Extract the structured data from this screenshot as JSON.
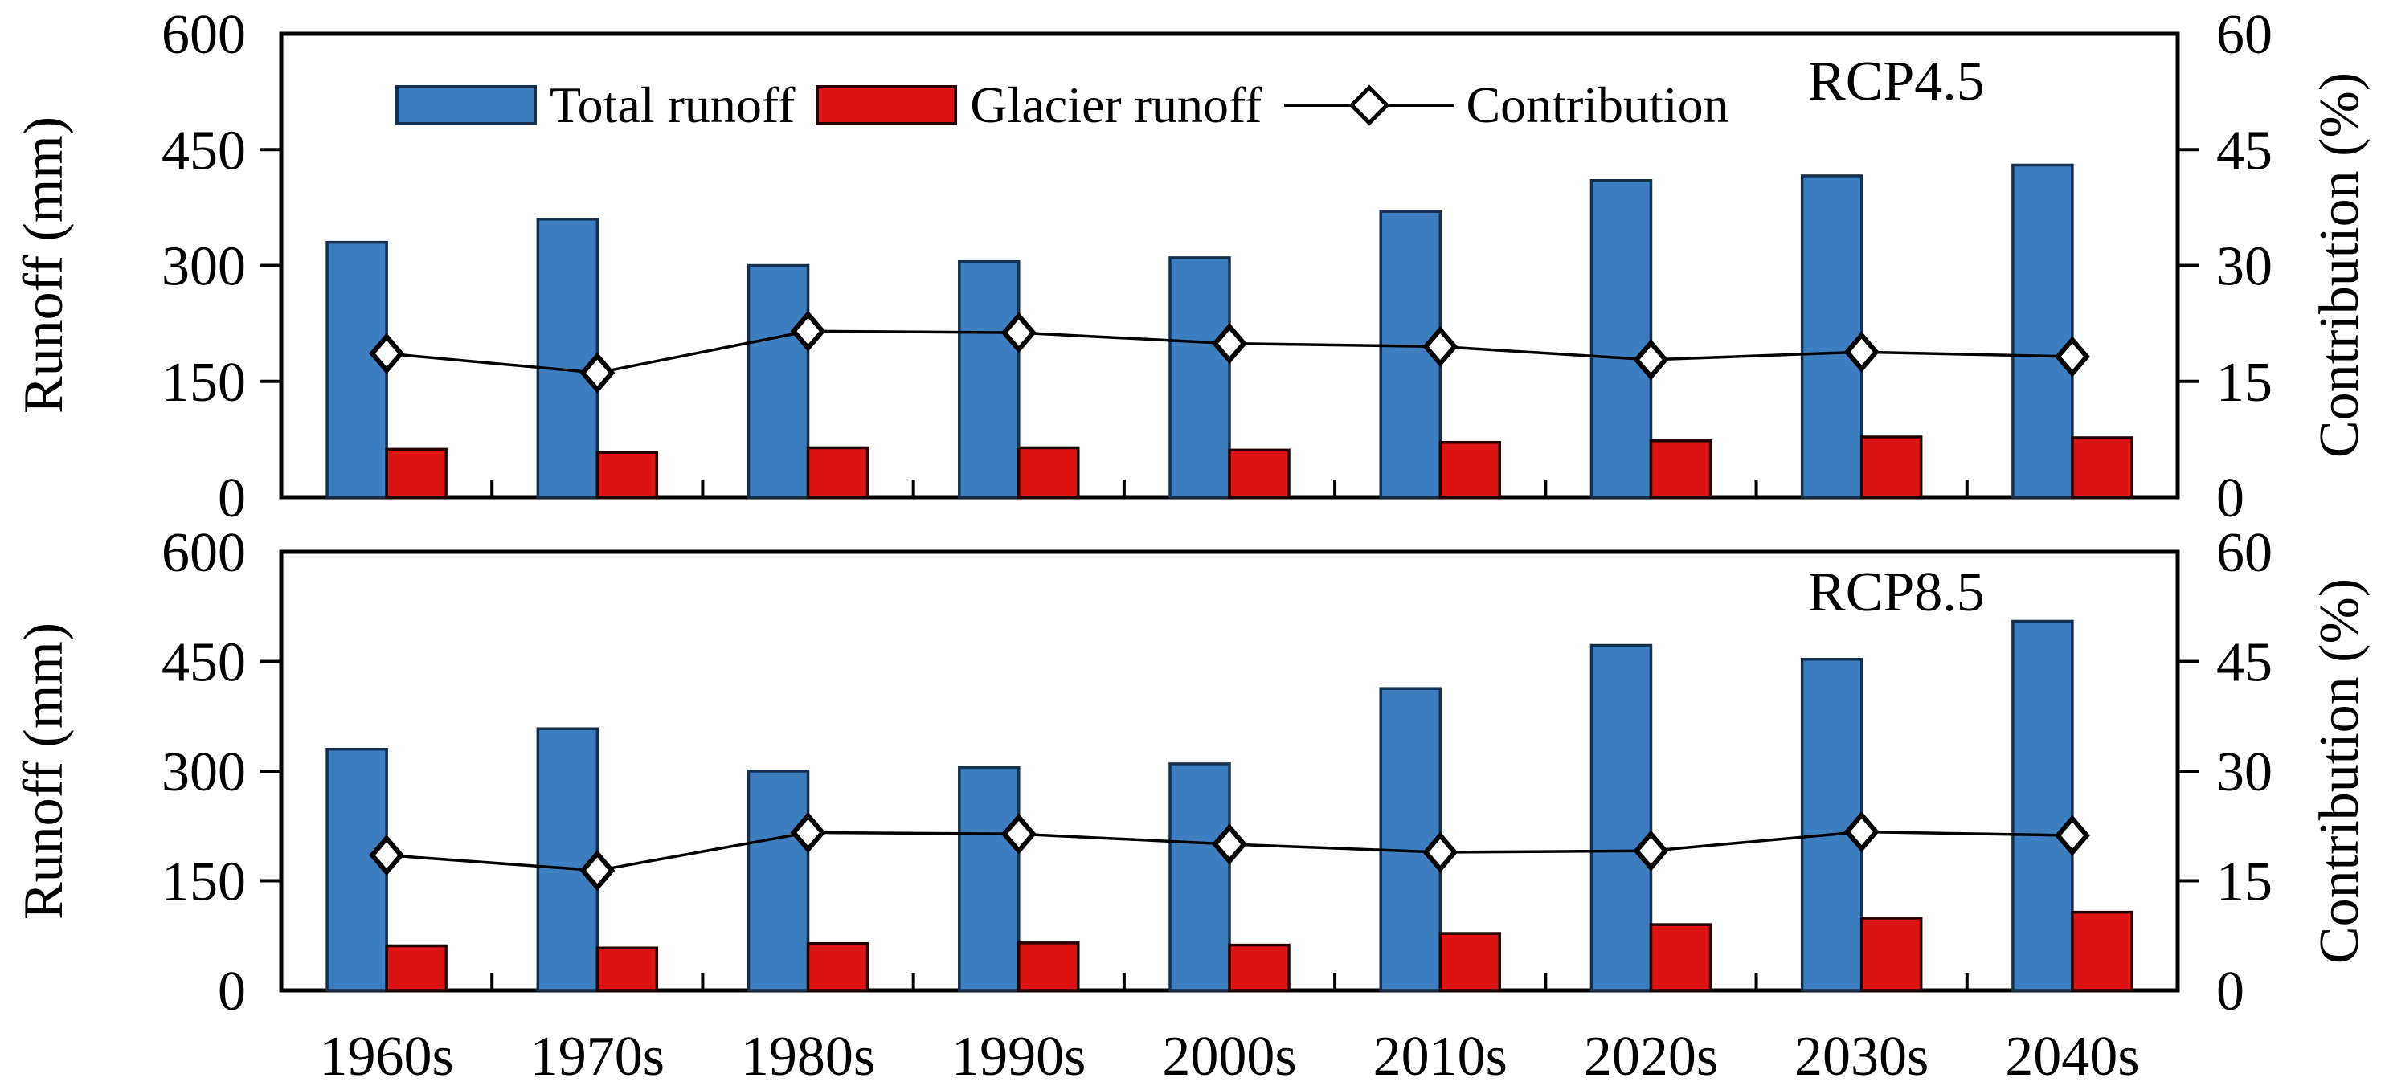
{
  "figure": {
    "y_axis_label": "Runoff (mm)",
    "y2_axis_label": "Contribution (%)"
  },
  "legend": {
    "total": "Total runoff",
    "glacier": "Glacier runoff",
    "contribution": "Contribution"
  },
  "colors": {
    "total_fill": "#3C7EC0",
    "total_border": "#16304F",
    "glacier_fill": "#DC1414",
    "glacier_border": "#240000",
    "line": "#000000",
    "marker_fill": "#FFFFFF",
    "frame": "#000000"
  },
  "chart_data": [
    {
      "type": "bar+line",
      "title": "RCP4.5",
      "categories": [
        "1960s",
        "1970s",
        "1980s",
        "1990s",
        "2000s",
        "2010s",
        "2020s",
        "2030s",
        "2040s"
      ],
      "series": [
        {
          "name": "Total runoff",
          "axis": "left",
          "type": "bar",
          "values": [
            330,
            360,
            300,
            305,
            310,
            370,
            410,
            416,
            430
          ]
        },
        {
          "name": "Glacier runoff",
          "axis": "left",
          "type": "bar",
          "values": [
            62,
            58,
            64,
            64,
            61,
            71,
            73,
            78,
            77
          ]
        },
        {
          "name": "Contribution",
          "axis": "right",
          "type": "line",
          "values": [
            18.6,
            16.1,
            21.5,
            21.3,
            19.9,
            19.5,
            17.8,
            18.8,
            18.2
          ]
        }
      ],
      "ylabel": "Runoff (mm)",
      "y2label": "Contribution (%)",
      "ylim": [
        0,
        600
      ],
      "y2lim": [
        0,
        60
      ],
      "yticks": [
        0,
        150,
        300,
        450,
        600
      ],
      "y2ticks": [
        0,
        15,
        30,
        45,
        60
      ],
      "grid": false,
      "legend_position": "top-inside"
    },
    {
      "type": "bar+line",
      "title": "RCP8.5",
      "categories": [
        "1960s",
        "1970s",
        "1980s",
        "1990s",
        "2000s",
        "2010s",
        "2020s",
        "2030s",
        "2040s"
      ],
      "series": [
        {
          "name": "Total runoff",
          "axis": "left",
          "type": "bar",
          "values": [
            330,
            358,
            300,
            305,
            310,
            413,
            472,
            453,
            505
          ]
        },
        {
          "name": "Glacier runoff",
          "axis": "left",
          "type": "bar",
          "values": [
            61,
            58,
            64,
            65,
            62,
            78,
            90,
            99,
            107
          ]
        },
        {
          "name": "Contribution",
          "axis": "right",
          "type": "line",
          "values": [
            18.5,
            16.4,
            21.6,
            21.4,
            20.0,
            18.9,
            19.1,
            21.7,
            21.2
          ]
        }
      ],
      "ylabel": "Runoff (mm)",
      "y2label": "Contribution (%)",
      "ylim": [
        0,
        600
      ],
      "y2lim": [
        0,
        60
      ],
      "yticks": [
        0,
        150,
        300,
        450,
        600
      ],
      "y2ticks": [
        0,
        15,
        30,
        45,
        60
      ],
      "grid": false,
      "legend_position": "none"
    }
  ]
}
